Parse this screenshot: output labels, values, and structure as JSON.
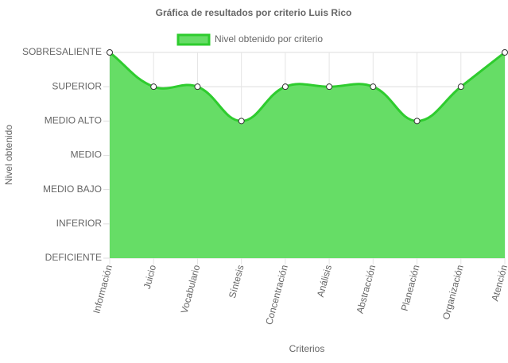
{
  "chart_data": {
    "type": "area",
    "title": "Gráfica de resultados por criterio Luis Rico",
    "x_label": "Criterios",
    "y_label": "Nivel obtenido",
    "categories": [
      "Información",
      "Juicio",
      "Vocabulario",
      "Síntesis",
      "Concentración",
      "Análisis",
      "Abstracción",
      "Planeación",
      "Organización",
      "Atención"
    ],
    "series": [
      {
        "name": "Nivel obtenido por criterio",
        "color": "#2ecc2e",
        "fill": "#66dd66",
        "values": [
          6,
          5,
          5,
          4,
          5,
          5,
          5,
          4,
          5,
          6
        ]
      }
    ],
    "ylim": [
      0,
      6
    ],
    "yticks": [
      {
        "value": 0,
        "label": "DEFICIENTE"
      },
      {
        "value": 1,
        "label": "INFERIOR"
      },
      {
        "value": 2,
        "label": "MEDIO BAJO"
      },
      {
        "value": 3,
        "label": "MEDIO"
      },
      {
        "value": 4,
        "label": "MEDIO ALTO"
      },
      {
        "value": 5,
        "label": "SUPERIOR"
      },
      {
        "value": 6,
        "label": "SOBRESALIENTE"
      }
    ],
    "grid": true,
    "legend": "top"
  }
}
